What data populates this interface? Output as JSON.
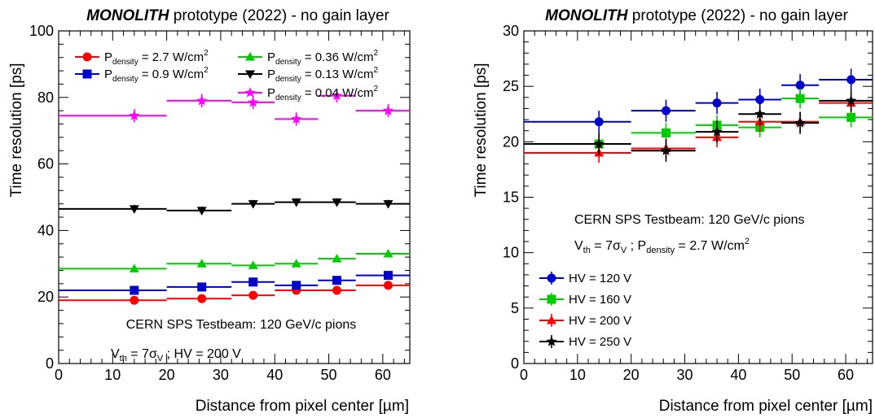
{
  "chart_data": [
    {
      "type": "scatter",
      "title_bold": "MONOLITH",
      "title_rest": " prototype (2022) - no gain layer",
      "xlabel": "Distance from pixel center [µm]",
      "ylabel": "Time resolution [ps]",
      "xlim": [
        0,
        65
      ],
      "ylim": [
        0,
        100
      ],
      "xticks": [
        0,
        10,
        20,
        30,
        40,
        50,
        60
      ],
      "yticks": [
        0,
        20,
        40,
        60,
        80,
        100
      ],
      "grid": false,
      "legend_position": "top",
      "annotations": [
        "CERN SPS Testbeam: 120 GeV/c pions",
        "V_th = 7σ_V ; HV = 200 V"
      ],
      "series": [
        {
          "name": "P_density = 2.7 W/cm²",
          "legend": {
            "pre": "P",
            "sub": "density",
            "post": " = 2.7 W/cm",
            "sup": "2"
          },
          "color": "#ff0000",
          "marker": "circle",
          "x": [
            14,
            26.5,
            36,
            44,
            51.5,
            61
          ],
          "y": [
            19,
            19.5,
            20.5,
            22,
            22,
            23.5
          ],
          "xbins": [
            [
              0,
              20
            ],
            [
              20,
              32
            ],
            [
              32,
              40
            ],
            [
              40,
              48
            ],
            [
              48,
              55
            ],
            [
              55,
              65
            ]
          ],
          "yerr": 1
        },
        {
          "name": "P_density = 0.9 W/cm²",
          "legend": {
            "pre": "P",
            "sub": "density",
            "post": " = 0.9 W/cm",
            "sup": "2"
          },
          "color": "#0000cc",
          "marker": "square",
          "x": [
            14,
            26.5,
            36,
            44,
            51.5,
            61
          ],
          "y": [
            22,
            23,
            24.5,
            23.5,
            25,
            26.5
          ],
          "xbins": [
            [
              0,
              20
            ],
            [
              20,
              32
            ],
            [
              32,
              40
            ],
            [
              40,
              48
            ],
            [
              48,
              55
            ],
            [
              55,
              65
            ]
          ],
          "yerr": 1
        },
        {
          "name": "P_density = 0.36 W/cm²",
          "legend": {
            "pre": "P",
            "sub": "density",
            "post": " = 0.36 W/cm",
            "sup": "2"
          },
          "color": "#00cc00",
          "marker": "triangle-up",
          "x": [
            14,
            26.5,
            36,
            44,
            51.5,
            61
          ],
          "y": [
            28.5,
            30,
            29.5,
            30,
            31.5,
            33
          ],
          "xbins": [
            [
              0,
              20
            ],
            [
              20,
              32
            ],
            [
              32,
              40
            ],
            [
              40,
              48
            ],
            [
              48,
              55
            ],
            [
              55,
              65
            ]
          ],
          "yerr": 1
        },
        {
          "name": "P_density = 0.13 W/cm²",
          "legend": {
            "pre": "P",
            "sub": "density",
            "post": " = 0.13 W/cm",
            "sup": "2"
          },
          "color": "#000000",
          "marker": "triangle-down",
          "x": [
            14,
            26.5,
            36,
            44,
            51.5,
            61
          ],
          "y": [
            46.5,
            46,
            48,
            48.5,
            48.5,
            48
          ],
          "xbins": [
            [
              0,
              20
            ],
            [
              20,
              32
            ],
            [
              32,
              40
            ],
            [
              40,
              48
            ],
            [
              48,
              55
            ],
            [
              55,
              65
            ]
          ],
          "yerr": 1.2
        },
        {
          "name": "P_density = 0.04 W/cm²",
          "legend": {
            "pre": "P",
            "sub": "density",
            "post": " = 0.04 W/cm",
            "sup": "2"
          },
          "color": "#ff00ff",
          "marker": "star",
          "x": [
            14,
            26.5,
            36,
            44,
            51.5,
            61
          ],
          "y": [
            74.5,
            79,
            78.5,
            73.5,
            80.5,
            76
          ],
          "xbins": [
            [
              0,
              20
            ],
            [
              20,
              32
            ],
            [
              32,
              40
            ],
            [
              40,
              48
            ],
            [
              48,
              55
            ],
            [
              55,
              65
            ]
          ],
          "yerr": 2
        }
      ]
    },
    {
      "type": "scatter",
      "title_bold": "MONOLITH",
      "title_rest": " prototype (2022) - no gain layer",
      "xlabel": "Distance from pixel center [µm]",
      "ylabel": "Time resolution [ps]",
      "xlim": [
        0,
        65
      ],
      "ylim": [
        0,
        30
      ],
      "xticks": [
        0,
        10,
        20,
        30,
        40,
        50,
        60
      ],
      "yticks": [
        0,
        5,
        10,
        15,
        20,
        25,
        30
      ],
      "grid": false,
      "legend_position": "bottom-left",
      "annotations": [
        "CERN SPS Testbeam: 120 GeV/c pions",
        "V_th = 7σ_V ; P_density = 2.7 W/cm²"
      ],
      "series": [
        {
          "name": "HV = 120 V",
          "color": "#0000cc",
          "marker": "circle",
          "x": [
            14,
            26.5,
            36,
            44,
            51.5,
            61
          ],
          "y": [
            21.8,
            22.8,
            23.5,
            23.8,
            25.1,
            25.6
          ],
          "xbins": [
            [
              0,
              20
            ],
            [
              20,
              32
            ],
            [
              32,
              40
            ],
            [
              40,
              48
            ],
            [
              48,
              55
            ],
            [
              55,
              65
            ]
          ],
          "yerr": 1
        },
        {
          "name": "HV = 160 V",
          "color": "#00cc00",
          "marker": "square",
          "x": [
            14,
            26.5,
            36,
            44,
            51.5,
            61
          ],
          "y": [
            19.8,
            20.8,
            21.5,
            21.3,
            23.9,
            22.2
          ],
          "xbins": [
            [
              0,
              20
            ],
            [
              20,
              32
            ],
            [
              32,
              40
            ],
            [
              40,
              48
            ],
            [
              48,
              55
            ],
            [
              55,
              65
            ]
          ],
          "yerr": 0.9
        },
        {
          "name": "HV = 200 V",
          "color": "#ff0000",
          "marker": "triangle-up",
          "x": [
            14,
            26.5,
            36,
            44,
            51.5,
            61
          ],
          "y": [
            19,
            19.4,
            20.4,
            21.8,
            21.8,
            23.5
          ],
          "xbins": [
            [
              0,
              20
            ],
            [
              20,
              32
            ],
            [
              32,
              40
            ],
            [
              40,
              48
            ],
            [
              48,
              55
            ],
            [
              55,
              65
            ]
          ],
          "yerr": 0.9
        },
        {
          "name": "HV = 250 V",
          "color": "#000000",
          "marker": "star",
          "x": [
            14,
            26.5,
            36,
            44,
            51.5,
            61
          ],
          "y": [
            19.8,
            19.2,
            20.9,
            22.5,
            21.7,
            23.7
          ],
          "xbins": [
            [
              0,
              20
            ],
            [
              20,
              32
            ],
            [
              32,
              40
            ],
            [
              40,
              48
            ],
            [
              48,
              55
            ],
            [
              55,
              65
            ]
          ],
          "yerr": 1
        }
      ]
    }
  ]
}
